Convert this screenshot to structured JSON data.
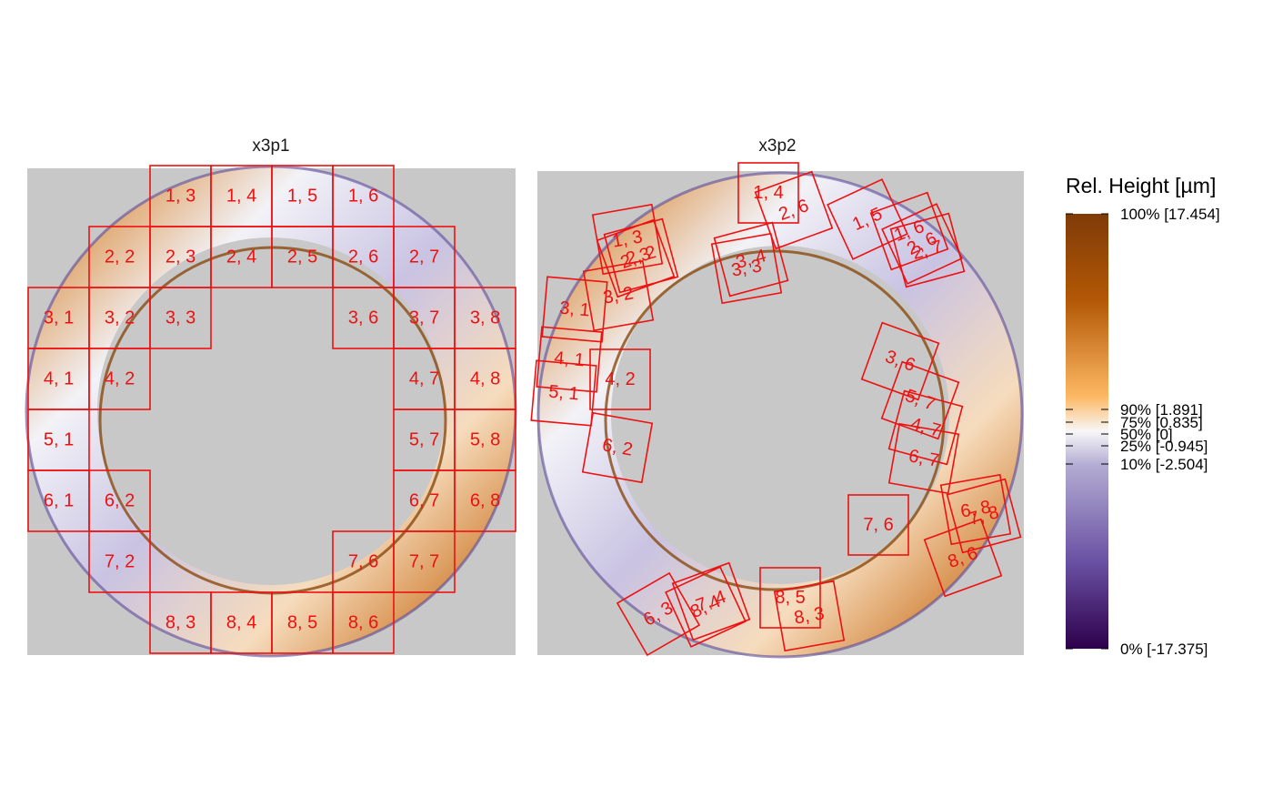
{
  "panels": [
    {
      "title": "x3p1",
      "cells": [
        {
          "label": "1, 3"
        },
        {
          "label": "1, 4"
        },
        {
          "label": "1, 5"
        },
        {
          "label": "1, 6"
        },
        {
          "label": "2, 2"
        },
        {
          "label": "2, 3"
        },
        {
          "label": "2, 4"
        },
        {
          "label": "2, 5"
        },
        {
          "label": "2, 6"
        },
        {
          "label": "2, 7"
        },
        {
          "label": "3, 1"
        },
        {
          "label": "3, 2"
        },
        {
          "label": "3, 3"
        },
        {
          "label": "3, 6"
        },
        {
          "label": "3, 7"
        },
        {
          "label": "3, 8"
        },
        {
          "label": "4, 1"
        },
        {
          "label": "4, 2"
        },
        {
          "label": "4, 7"
        },
        {
          "label": "4, 8"
        },
        {
          "label": "5, 1"
        },
        {
          "label": "5, 7"
        },
        {
          "label": "5, 8"
        },
        {
          "label": "6, 1"
        },
        {
          "label": "6, 2"
        },
        {
          "label": "6, 7"
        },
        {
          "label": "6, 8"
        },
        {
          "label": "7, 2"
        },
        {
          "label": "7, 6"
        },
        {
          "label": "7, 7"
        },
        {
          "label": "8, 3"
        },
        {
          "label": "8, 4"
        },
        {
          "label": "8, 5"
        },
        {
          "label": "8, 6"
        }
      ]
    },
    {
      "title": "x3p2",
      "cells": [
        {
          "label": "1, 4"
        },
        {
          "label": "2, 6"
        },
        {
          "label": "1, 5"
        },
        {
          "label": "1, 6"
        },
        {
          "label": "2, 7"
        },
        {
          "label": "2, 6"
        },
        {
          "label": "1, 3"
        },
        {
          "label": "2, 2"
        },
        {
          "label": "2, 3"
        },
        {
          "label": "3, 2"
        },
        {
          "label": "3, 1"
        },
        {
          "label": "3, 4"
        },
        {
          "label": "3, 3"
        },
        {
          "label": "4, 1"
        },
        {
          "label": "4, 2"
        },
        {
          "label": "5, 1"
        },
        {
          "label": "6, 2"
        },
        {
          "label": "3, 6"
        },
        {
          "label": "5, 7"
        },
        {
          "label": "4, 7"
        },
        {
          "label": "6, 7"
        },
        {
          "label": "7, 6"
        },
        {
          "label": "6, 8"
        },
        {
          "label": "7, 8"
        },
        {
          "label": "8, 6"
        },
        {
          "label": "6, 3"
        },
        {
          "label": "7, 4"
        },
        {
          "label": "8, 4"
        },
        {
          "label": "8, 5"
        },
        {
          "label": "8, 3"
        }
      ]
    }
  ],
  "legend": {
    "title": "Rel. Height [µm]",
    "ticks": [
      {
        "label": "100% [17.454]",
        "value": 17.454
      },
      {
        "label": "90% [1.891]",
        "value": 1.891
      },
      {
        "label": "75% [0.835]",
        "value": 0.835
      },
      {
        "label": "50% [0]",
        "value": 0
      },
      {
        "label": "25% [-0.945]",
        "value": -0.945
      },
      {
        "label": "10% [-2.504]",
        "value": -2.504
      },
      {
        "label": "0% [-17.375]",
        "value": -17.375
      }
    ],
    "colors": [
      "#2d004b",
      "#6a51a3",
      "#b2abd2",
      "#f7f7f7",
      "#fdb863",
      "#b35806",
      "#7f3b08"
    ]
  }
}
